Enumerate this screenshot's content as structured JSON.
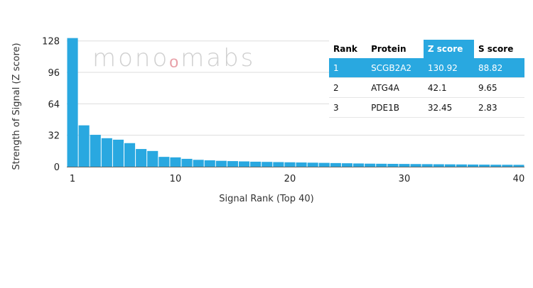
{
  "watermark": {
    "text_a": "mono",
    "text_b": "mabs"
  },
  "colors": {
    "bar": "#29a8e0",
    "highlight": "#29a8e0"
  },
  "table": {
    "headers": [
      "Rank",
      "Protein",
      "Z score",
      "S score"
    ],
    "rows": [
      [
        "1",
        "SCGB2A2",
        "130.92",
        "88.82"
      ],
      [
        "2",
        "ATG4A",
        "42.1",
        "9.65"
      ],
      [
        "3",
        "PDE1B",
        "32.45",
        "2.83"
      ]
    ]
  },
  "chart_data": {
    "type": "bar",
    "xlabel": "Signal Rank (Top 40)",
    "ylabel": "Strength of Signal (Z score)",
    "x": [
      1,
      2,
      3,
      4,
      5,
      6,
      7,
      8,
      9,
      10,
      11,
      12,
      13,
      14,
      15,
      16,
      17,
      18,
      19,
      20,
      21,
      22,
      23,
      24,
      25,
      26,
      27,
      28,
      29,
      30,
      31,
      32,
      33,
      34,
      35,
      36,
      37,
      38,
      39,
      40
    ],
    "values": [
      130.92,
      42.1,
      32.45,
      29,
      27.5,
      24,
      18,
      16,
      10,
      9.5,
      8,
      7,
      6.5,
      6,
      5.7,
      5.4,
      5.1,
      4.9,
      4.7,
      4.5,
      4.3,
      4.1,
      3.9,
      3.7,
      3.5,
      3.3,
      3.1,
      3,
      2.9,
      2.8,
      2.7,
      2.6,
      2.5,
      2.4,
      2.3,
      2.2,
      2.1,
      2,
      1.95,
      1.9
    ],
    "ylim": [
      0,
      135
    ],
    "xlim": [
      0.5,
      40.5
    ],
    "yticks": [
      0,
      32,
      64,
      96,
      128
    ],
    "xticks": [
      1,
      10,
      20,
      30,
      40
    ],
    "grid": "horizontal"
  }
}
